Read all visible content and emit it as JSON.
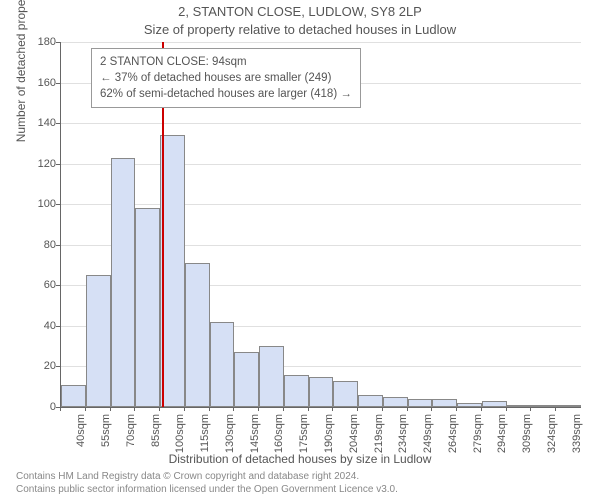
{
  "title1": "2, STANTON CLOSE, LUDLOW, SY8 2LP",
  "title2": "Size of property relative to detached houses in Ludlow",
  "ylabel": "Number of detached properties",
  "xlabel": "Distribution of detached houses by size in Ludlow",
  "attribution_line1": "Contains HM Land Registry data © Crown copyright and database right 2024.",
  "attribution_line2": "Contains public sector information licensed under the Open Government Licence v3.0.",
  "info_box": {
    "line1": "2 STANTON CLOSE: 94sqm",
    "line2": "← 37% of detached houses are smaller (249)",
    "line3": "62% of semi-detached houses are larger (418) →"
  },
  "chart": {
    "type": "histogram",
    "ylim": [
      0,
      180
    ],
    "ytick_step": 20,
    "bar_fill": "#d6e0f5",
    "bar_border": "#888",
    "grid_color": "#e0e0e0",
    "marker_x": 94,
    "marker_color": "#cc0000",
    "categories": [
      "40sqm",
      "55sqm",
      "70sqm",
      "85sqm",
      "100sqm",
      "115sqm",
      "130sqm",
      "145sqm",
      "160sqm",
      "175sqm",
      "190sqm",
      "204sqm",
      "219sqm",
      "234sqm",
      "249sqm",
      "264sqm",
      "279sqm",
      "294sqm",
      "309sqm",
      "324sqm",
      "339sqm"
    ],
    "x_values": [
      40,
      55,
      70,
      85,
      100,
      115,
      130,
      145,
      160,
      175,
      190,
      204,
      219,
      234,
      249,
      264,
      279,
      294,
      309,
      324,
      339
    ],
    "values": [
      11,
      65,
      123,
      98,
      134,
      71,
      42,
      27,
      30,
      16,
      15,
      13,
      6,
      5,
      4,
      4,
      2,
      3,
      0,
      0,
      1
    ],
    "x_min": 33,
    "x_max": 347,
    "background_color": "#ffffff",
    "title_fontsize": 13,
    "label_fontsize": 12,
    "tick_fontsize": 11
  }
}
